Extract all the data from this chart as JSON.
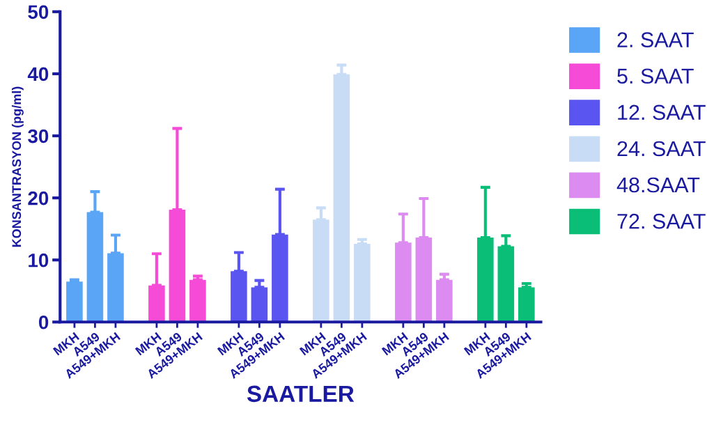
{
  "chart_data": {
    "type": "bar",
    "xlabel": "SAATLER",
    "ylabel": "KONSANTRASYON (pg/ml)",
    "categories": [
      "MKH",
      "A549",
      "A549+MKH",
      null,
      "MKH",
      "A549",
      "A549+MKH",
      null,
      "MKH",
      "A549",
      "A549+MKH",
      null,
      "MKH",
      "A549",
      "A549+MKH",
      null,
      "MKH",
      "A549",
      "A549+MKH",
      null,
      "MKH",
      "A549",
      "A549+MKH"
    ],
    "series": [
      {
        "name": "2. SAAT",
        "color": "#5aa5f5",
        "values": [
          6.5,
          17.7,
          11.1,
          null,
          null,
          null,
          null,
          null,
          null,
          null,
          null,
          null,
          null,
          null,
          null,
          null,
          null,
          null,
          null,
          null,
          null,
          null,
          null
        ],
        "errors": [
          [
            6.5,
            6.8
          ],
          [
            17.7,
            21.0
          ],
          [
            11.1,
            14.0
          ],
          null,
          null,
          null,
          null,
          null,
          null,
          null,
          null,
          null,
          null,
          null,
          null,
          null,
          null,
          null,
          null,
          null,
          null,
          null,
          null
        ]
      },
      {
        "name": "5. SAAT",
        "color": "#f54bd6",
        "values": [
          null,
          null,
          null,
          null,
          5.9,
          18.1,
          6.8,
          null,
          null,
          null,
          null,
          null,
          null,
          null,
          null,
          null,
          null,
          null,
          null,
          null,
          null,
          null,
          null
        ],
        "errors": [
          null,
          null,
          null,
          null,
          [
            5.9,
            11.0
          ],
          [
            18.1,
            31.2
          ],
          [
            6.8,
            7.4
          ],
          null,
          null,
          null,
          null,
          null,
          null,
          null,
          null,
          null,
          null,
          null,
          null,
          null,
          null,
          null,
          null
        ]
      },
      {
        "name": "12. SAAT",
        "color": "#5a55f0",
        "values": [
          null,
          null,
          null,
          null,
          null,
          null,
          null,
          null,
          8.2,
          5.6,
          14.1,
          null,
          null,
          null,
          null,
          null,
          null,
          null,
          null,
          null,
          null,
          null,
          null
        ],
        "errors": [
          null,
          null,
          null,
          null,
          null,
          null,
          null,
          null,
          [
            8.2,
            11.2
          ],
          [
            5.6,
            6.7
          ],
          [
            14.1,
            21.4
          ],
          null,
          null,
          null,
          null,
          null,
          null,
          null,
          null,
          null,
          null,
          null,
          null
        ]
      },
      {
        "name": "24. SAAT",
        "color": "#c8dcf5",
        "values": [
          null,
          null,
          null,
          null,
          null,
          null,
          null,
          null,
          null,
          null,
          null,
          null,
          16.5,
          39.9,
          12.6,
          null,
          null,
          null,
          null,
          null,
          null,
          null,
          null
        ],
        "errors": [
          null,
          null,
          null,
          null,
          null,
          null,
          null,
          null,
          null,
          null,
          null,
          null,
          [
            16.5,
            18.4
          ],
          [
            39.9,
            41.4
          ],
          [
            12.6,
            13.3
          ],
          null,
          null,
          null,
          null,
          null,
          null,
          null,
          null
        ]
      },
      {
        "name": "48.SAAT",
        "color": "#dc8cf0",
        "values": [
          null,
          null,
          null,
          null,
          null,
          null,
          null,
          null,
          null,
          null,
          null,
          null,
          null,
          null,
          null,
          null,
          12.8,
          13.6,
          6.8,
          null,
          null,
          null,
          null
        ],
        "errors": [
          null,
          null,
          null,
          null,
          null,
          null,
          null,
          null,
          null,
          null,
          null,
          null,
          null,
          null,
          null,
          null,
          [
            12.8,
            17.4
          ],
          [
            13.6,
            19.9
          ],
          [
            6.8,
            7.7
          ],
          null,
          null,
          null,
          null
        ]
      },
      {
        "name": "72. SAAT",
        "color": "#0abe78",
        "values": [
          null,
          null,
          null,
          null,
          null,
          null,
          null,
          null,
          null,
          null,
          null,
          null,
          null,
          null,
          null,
          null,
          null,
          null,
          null,
          null,
          13.6,
          12.2,
          5.6
        ],
        "errors": [
          null,
          null,
          null,
          null,
          null,
          null,
          null,
          null,
          null,
          null,
          null,
          null,
          null,
          null,
          null,
          null,
          null,
          null,
          null,
          null,
          [
            13.6,
            21.7
          ],
          [
            12.2,
            13.9
          ],
          [
            5.6,
            6.2
          ]
        ]
      }
    ],
    "ylim": [
      0,
      50
    ],
    "yticks": [
      0,
      10,
      20,
      30,
      40,
      50
    ],
    "grid": false,
    "legend": "right"
  }
}
